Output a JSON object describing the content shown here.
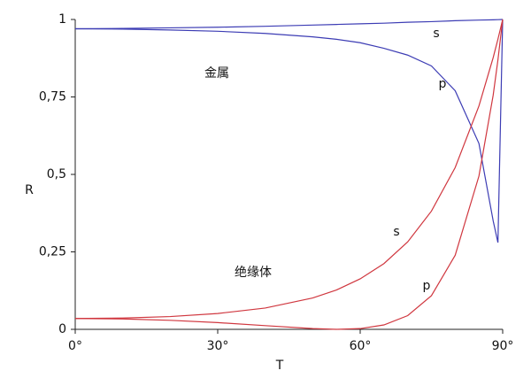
{
  "chart_data": {
    "type": "line",
    "x": [
      0,
      10,
      20,
      30,
      40,
      50,
      55,
      60,
      65,
      70,
      75,
      80,
      85,
      88,
      89,
      90
    ],
    "series": [
      {
        "name": "s",
        "color": "#3c3cb4",
        "values": [
          0.97,
          0.971,
          0.973,
          0.975,
          0.978,
          0.982,
          0.984,
          0.986,
          0.988,
          0.991,
          0.993,
          0.996,
          0.998,
          0.999,
          0.9995,
          1
        ]
      },
      {
        "name": "p",
        "color": "#3c3cb4",
        "values": [
          0.97,
          0.969,
          0.966,
          0.962,
          0.955,
          0.944,
          0.936,
          0.925,
          0.907,
          0.885,
          0.85,
          0.77,
          0.6,
          0.35,
          0.28,
          1
        ]
      },
      {
        "name": "s",
        "color": "#d0373f",
        "values": [
          0.035,
          0.0365,
          0.0413,
          0.0511,
          0.0688,
          0.1013,
          0.127,
          0.163,
          0.2122,
          0.2823,
          0.3815,
          0.5221,
          0.7208,
          0.877,
          0.9365,
          1
        ]
      },
      {
        "name": "p",
        "color": "#d0373f",
        "values": [
          0.035,
          0.0335,
          0.0291,
          0.0217,
          0.012,
          0.0024,
          0,
          0.0024,
          0.0142,
          0.0443,
          0.1088,
          0.239,
          0.4947,
          0.7557,
          0.8694,
          1
        ]
      }
    ],
    "annotations": [
      "金属",
      "绝缘体"
    ],
    "xlabel": "T",
    "ylabel": "R",
    "xlim": [
      0,
      90
    ],
    "xticks": [
      {
        "value": 0,
        "label": "0°"
      },
      {
        "value": 30,
        "label": "30°"
      },
      {
        "value": 60,
        "label": "60°"
      },
      {
        "value": 90,
        "label": "90°"
      }
    ],
    "ylim": [
      0,
      1
    ],
    "yticks": [
      0,
      {
        "value": 0.25,
        "label": "0,25"
      },
      {
        "value": 0.5,
        "label": "0,5"
      },
      {
        "value": 0.75,
        "label": "0,75"
      },
      1
    ],
    "grid": false
  }
}
